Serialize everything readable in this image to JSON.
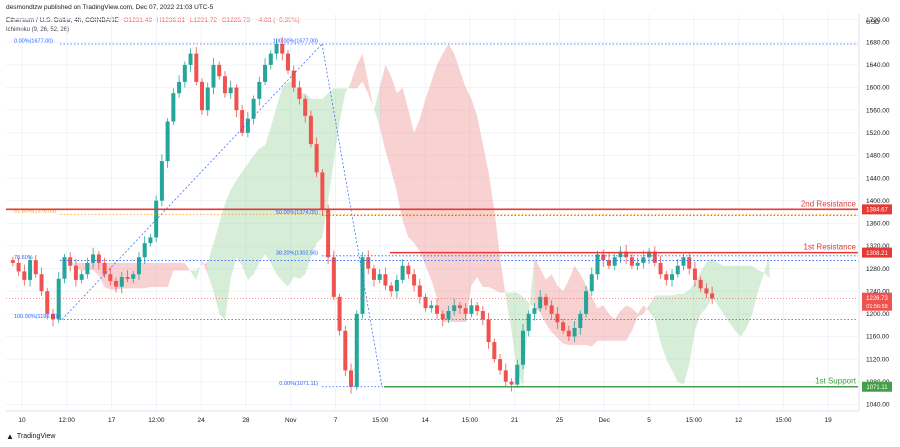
{
  "header": {
    "publish_line": "desmondlzw published on TradingView.com, Dec 07, 2022 21:03 UTC-5",
    "symbol_line": "Ethereum / U.S. Dollar, 4h, COINBASE",
    "ohlc": {
      "o": "O1231.49",
      "h": "H1236.81",
      "l": "L1221.72",
      "c": "C1226.73",
      "chg": "−4.83 (−0.39%)"
    },
    "indicator_line": "Ichimoku (9, 26, 52, 26)"
  },
  "footer": {
    "brand": "TradingView"
  },
  "colors": {
    "up": "#26a69a",
    "down": "#ef5350",
    "resistance": "#e53935",
    "support": "#43a047",
    "fib": "#2962ff",
    "fib_orange": "#ff9800",
    "cloud_green": "#a5d6a7",
    "cloud_red": "#ef9a9a",
    "grid": "#f0f3fa",
    "axis_text": "#131722"
  },
  "chart_data": {
    "type": "candlestick",
    "y_axis": {
      "unit": "USD",
      "ylim": [
        1030,
        1730
      ],
      "ticks": [
        "1720.00",
        "1680.00",
        "1640.00",
        "1600.00",
        "1560.00",
        "1520.00",
        "1480.00",
        "1440.00",
        "1400.00",
        "1360.00",
        "1320.00",
        "1280.00",
        "1240.00",
        "1200.00",
        "1160.00",
        "1120.00",
        "1080.00",
        "1040.00"
      ]
    },
    "x_axis": {
      "ticks": [
        "10",
        "12:00",
        "17",
        "12:00",
        "24",
        "28",
        "Nov",
        "7",
        "15:00",
        "14",
        "15:00",
        "21",
        "25",
        "Dec",
        "5",
        "15:00",
        "12",
        "15:00",
        "19"
      ]
    },
    "price_path": [
      1290,
      1275,
      1260,
      1295,
      1270,
      1240,
      1200,
      1190,
      1262,
      1300,
      1285,
      1260,
      1270,
      1290,
      1305,
      1290,
      1270,
      1258,
      1248,
      1265,
      1262,
      1270,
      1300,
      1325,
      1335,
      1400,
      1470,
      1540,
      1590,
      1610,
      1640,
      1660,
      1610,
      1560,
      1600,
      1640,
      1620,
      1590,
      1600,
      1560,
      1520,
      1545,
      1580,
      1610,
      1640,
      1660,
      1677,
      1660,
      1630,
      1600,
      1580,
      1550,
      1500,
      1450,
      1384,
      1300,
      1230,
      1170,
      1100,
      1071,
      1200,
      1300,
      1280,
      1260,
      1270,
      1250,
      1240,
      1260,
      1285,
      1270,
      1250,
      1230,
      1210,
      1215,
      1200,
      1190,
      1205,
      1215,
      1210,
      1200,
      1215,
      1205,
      1190,
      1150,
      1120,
      1100,
      1080,
      1075,
      1110,
      1170,
      1200,
      1210,
      1230,
      1215,
      1200,
      1185,
      1170,
      1160,
      1175,
      1200,
      1240,
      1270,
      1305,
      1295,
      1285,
      1300,
      1310,
      1300,
      1285,
      1290,
      1300,
      1310,
      1290,
      1270,
      1260,
      1270,
      1285,
      1300,
      1280,
      1260,
      1245,
      1236,
      1227
    ],
    "levels": [
      {
        "name": "2nd Resistance",
        "label": "2nd Resistance",
        "value": 1384.67,
        "price_tag": "1384.67",
        "color": "#e53935"
      },
      {
        "name": "1st Resistance",
        "label": "1st Resistance",
        "value": 1308.21,
        "price_tag": "1308.21",
        "color": "#e53935"
      },
      {
        "name": "1st Support",
        "label": "1st Support",
        "value": 1071.11,
        "price_tag": "1071.11",
        "color": "#43a047"
      }
    ],
    "current_price": {
      "value": 1226.73,
      "price_tag": "1226.73",
      "countdown": "01:56:59"
    },
    "fib_left": [
      {
        "label": "0.00%(1677.00)",
        "value": 1677.0,
        "color": "#2962ff"
      },
      {
        "label": "61.80%(1376.03)",
        "value": 1376.03,
        "color": "#ff9800"
      },
      {
        "label": "78.60%",
        "value": 1294.2,
        "color": "#2962ff"
      },
      {
        "label": "100.00%(1190.00)",
        "value": 1190.0,
        "color": "#2962ff"
      }
    ],
    "fib_right": [
      {
        "label": "100.00%(1677.00)",
        "value": 1677.0
      },
      {
        "label": "50.00%(1374.05)",
        "value": 1374.05
      },
      {
        "label": "38.20%(1302.56)",
        "value": 1302.56
      },
      {
        "label": "0.00%(1071.11)",
        "value": 1071.11
      }
    ]
  }
}
